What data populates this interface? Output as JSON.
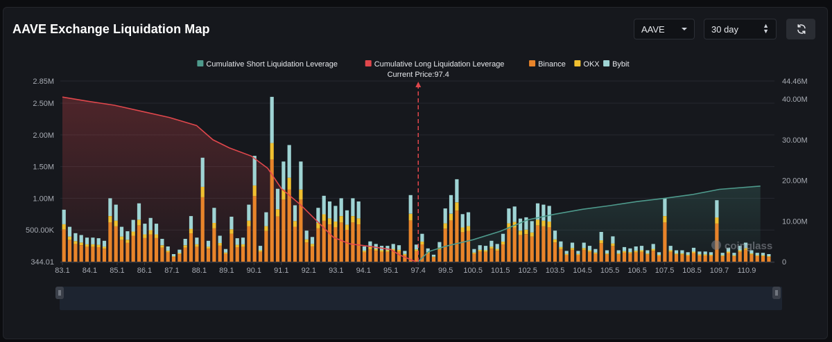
{
  "page": {
    "title": "AAVE Exchange Liquidation Map",
    "asset_select": {
      "value": "AAVE",
      "icon": "chevron-down-icon"
    },
    "period_select": {
      "value": "30 day",
      "icon": "up-down-stepper-icon"
    },
    "refresh_button": {
      "icon": "refresh-icon"
    },
    "watermark": "coinglass"
  },
  "chart_data": {
    "type": "bar",
    "title": "",
    "current_price_label": "Current Price:97.4",
    "current_price": 97.4,
    "legend": [
      {
        "name": "Cumulative Short Liquidation Leverage",
        "color": "#4e9a8c"
      },
      {
        "name": "Cumulative Long Liquidation Leverage",
        "color": "#e0474c"
      },
      {
        "name": "Binance",
        "color": "#e8842a"
      },
      {
        "name": "OKX",
        "color": "#f0c030"
      },
      {
        "name": "Bybit",
        "color": "#9fd4d4"
      }
    ],
    "legend_position": "top-center",
    "grid": true,
    "x_tick_labels": [
      "83.1",
      "84.1",
      "85.1",
      "86.1",
      "87.1",
      "88.1",
      "89.1",
      "90.1",
      "91.1",
      "92.1",
      "93.1",
      "94.1",
      "95.1",
      "97.4",
      "99.5",
      "100.5",
      "101.5",
      "102.5",
      "103.5",
      "104.5",
      "105.5",
      "106.5",
      "107.5",
      "108.5",
      "109.7",
      "110.9"
    ],
    "x_range": [
      83.1,
      111.5
    ],
    "y_left": {
      "tick_labels": [
        "344.01",
        "500.00K",
        "1.00M",
        "1.50M",
        "2.00M",
        "2.50M",
        "2.85M"
      ],
      "tick_values": [
        344.01,
        500000,
        1000000,
        1500000,
        2000000,
        2500000,
        2850000
      ],
      "range": [
        0,
        2850000
      ]
    },
    "y_right": {
      "tick_labels": [
        "0",
        "10.00M",
        "20.00M",
        "30.00M",
        "40.00M",
        "44.46M"
      ],
      "tick_values": [
        0,
        10000000,
        20000000,
        30000000,
        40000000,
        44460000
      ],
      "range": [
        0,
        44460000
      ]
    },
    "bars_total": [
      820000,
      550000,
      450000,
      420000,
      380000,
      380000,
      370000,
      330000,
      1000000,
      900000,
      550000,
      480000,
      660000,
      920000,
      600000,
      690000,
      600000,
      360000,
      240000,
      120000,
      190000,
      360000,
      720000,
      380000,
      1640000,
      330000,
      850000,
      410000,
      200000,
      710000,
      370000,
      380000,
      900000,
      1670000,
      250000,
      780000,
      2600000,
      1150000,
      1580000,
      1840000,
      890000,
      1580000,
      490000,
      390000,
      850000,
      1040000,
      950000,
      880000,
      1000000,
      810000,
      1000000,
      950000,
      240000,
      320000,
      280000,
      250000,
      250000,
      280000,
      260000,
      170000,
      1050000,
      270000,
      440000,
      210000,
      110000,
      310000,
      840000,
      1050000,
      1300000,
      750000,
      780000,
      200000,
      260000,
      250000,
      330000,
      280000,
      440000,
      840000,
      870000,
      680000,
      700000,
      640000,
      920000,
      900000,
      880000,
      490000,
      320000,
      170000,
      300000,
      170000,
      300000,
      250000,
      200000,
      470000,
      180000,
      400000,
      180000,
      230000,
      210000,
      240000,
      250000,
      180000,
      280000,
      150000,
      1000000,
      250000,
      180000,
      180000,
      150000,
      220000,
      160000,
      160000,
      150000,
      970000,
      140000,
      220000,
      140000,
      250000,
      300000,
      180000,
      140000,
      140000,
      120000
    ],
    "bars_stack_fraction": {
      "binance": 0.62,
      "okx": 0.1,
      "bybit": 0.28
    },
    "cumulative_long": [
      [
        83.1,
        40500000
      ],
      [
        84,
        39500000
      ],
      [
        85,
        38500000
      ],
      [
        86,
        37000000
      ],
      [
        87,
        35500000
      ],
      [
        88,
        33500000
      ],
      [
        88.6,
        30000000
      ],
      [
        89.2,
        28000000
      ],
      [
        90,
        26000000
      ],
      [
        90.6,
        23000000
      ],
      [
        91.1,
        18000000
      ],
      [
        91.8,
        14000000
      ],
      [
        92.4,
        10000000
      ],
      [
        93,
        6000000
      ],
      [
        93.6,
        4400000
      ],
      [
        94.3,
        3800000
      ],
      [
        95.1,
        3000000
      ],
      [
        95.8,
        1700000
      ],
      [
        96.6,
        700000
      ],
      [
        97.2,
        0
      ]
    ],
    "cumulative_short": [
      [
        97.4,
        0
      ],
      [
        98.2,
        2500000
      ],
      [
        99.5,
        3800000
      ],
      [
        100.5,
        5400000
      ],
      [
        101.5,
        7500000
      ],
      [
        102.5,
        10300000
      ],
      [
        103.5,
        11700000
      ],
      [
        104.5,
        12900000
      ],
      [
        105.5,
        13800000
      ],
      [
        106.5,
        14800000
      ],
      [
        107.5,
        15600000
      ],
      [
        108.5,
        16500000
      ],
      [
        109.7,
        17800000
      ],
      [
        111.5,
        18600000
      ]
    ]
  }
}
